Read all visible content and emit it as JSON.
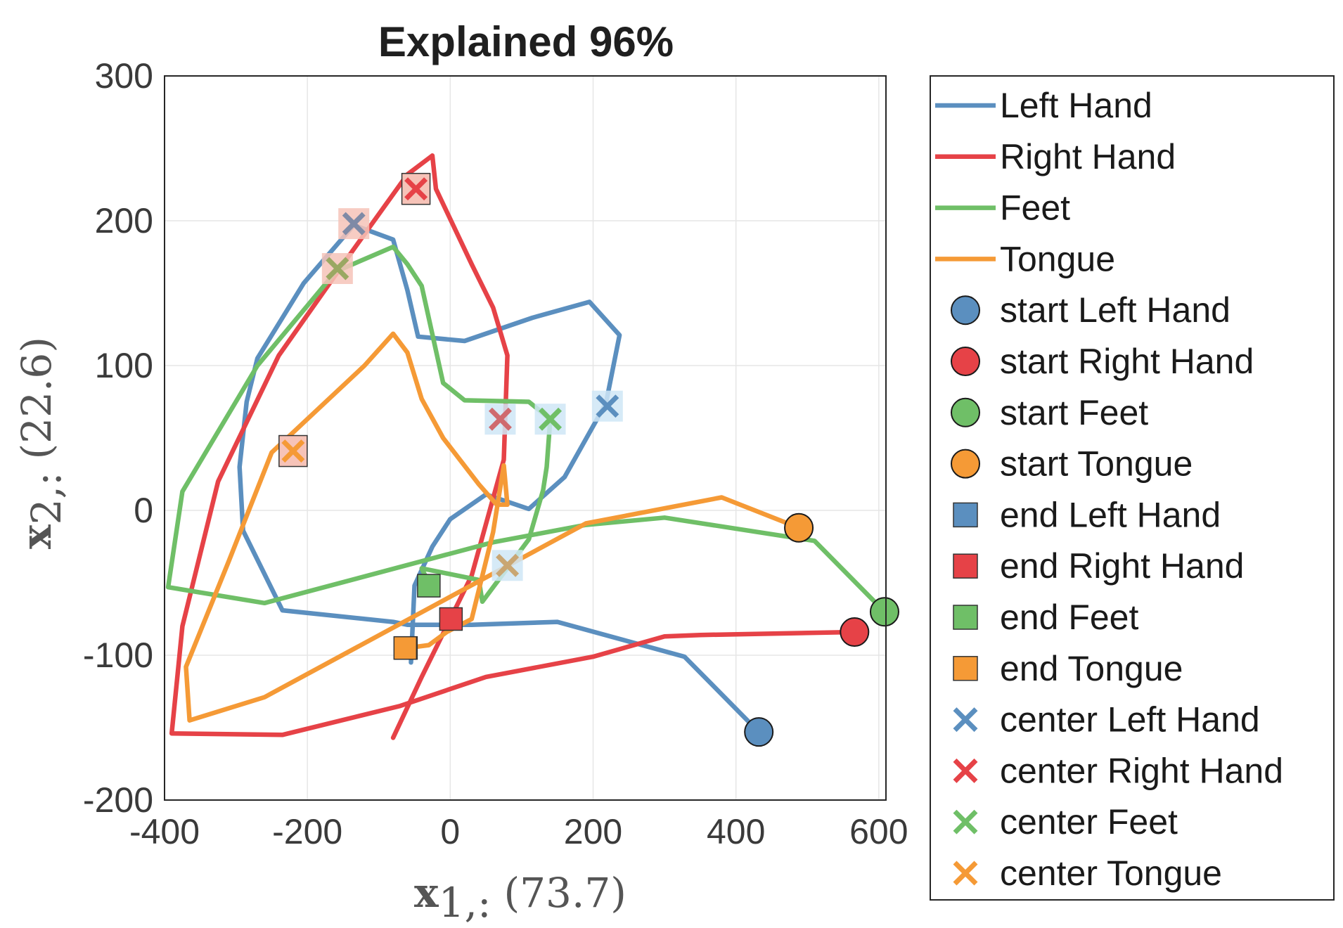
{
  "chart_data": {
    "type": "line",
    "title": "Explained  96%",
    "xlabel": {
      "var": "x",
      "sub": "1,:",
      "pct": "(73.7)"
    },
    "ylabel": {
      "var": "x",
      "sub": "2,:",
      "pct": "(22.6)"
    },
    "xlim": [
      -400,
      610
    ],
    "ylim": [
      -200,
      300
    ],
    "xticks": [
      -400,
      -200,
      0,
      200,
      400,
      600
    ],
    "yticks": [
      -200,
      -100,
      0,
      100,
      200,
      300
    ],
    "xtick_labels": [
      "-400",
      "-200",
      "0",
      "200",
      "400",
      "600"
    ],
    "ytick_labels": [
      "-200",
      "-100",
      "0",
      "100",
      "200",
      "300"
    ],
    "grid": true,
    "legend_position": "outside-right",
    "series": [
      {
        "name": "Left Hand",
        "color": "#5b8fbf",
        "x": [
          432,
          328,
          150,
          30,
          -60,
          -80,
          -235,
          -290,
          -295,
          -285,
          -270,
          -205,
          -135,
          -80,
          -60,
          -45,
          20,
          115,
          195,
          237,
          218,
          160,
          110,
          50,
          0,
          -25,
          -50,
          -55
        ],
        "y": [
          -153,
          -101,
          -77,
          -79,
          -79,
          -77,
          -69,
          -14,
          30,
          75,
          105,
          157,
          197,
          187,
          152,
          120,
          117,
          133,
          144,
          121,
          74,
          23,
          1,
          11,
          -6,
          -25,
          -52,
          -105
        ],
        "start": [
          432,
          -153
        ],
        "end": [
          -62,
          -95
        ],
        "center": [
          220,
          72
        ]
      },
      {
        "name": "Right Hand",
        "color": "#e64247",
        "x": [
          566,
          350,
          300,
          200,
          50,
          -70,
          -235,
          -390,
          -375,
          -325,
          -240,
          -140,
          -60,
          -25,
          -20,
          30,
          60,
          80,
          75,
          30,
          -40,
          -80
        ],
        "y": [
          -84,
          -86,
          -87,
          -101,
          -115,
          -135,
          -155,
          -154,
          -80,
          20,
          107,
          177,
          232,
          245,
          222,
          170,
          140,
          107,
          35,
          -45,
          -115,
          -157
        ],
        "start": [
          566,
          -84
        ],
        "end": [
          1,
          -75
        ],
        "center": [
          -48,
          222
        ]
      },
      {
        "name": "Feet",
        "color": "#6fbf67",
        "x": [
          608,
          510,
          300,
          190,
          60,
          -260,
          -395,
          -375,
          -270,
          -160,
          -80,
          -60,
          -40,
          -10,
          20,
          110,
          140,
          135,
          130,
          110,
          45,
          40,
          -40,
          -30
        ],
        "y": [
          -70,
          -21,
          -5,
          -10,
          -22,
          -64,
          -53,
          13,
          100,
          165,
          182,
          170,
          155,
          88,
          76,
          75,
          63,
          30,
          14,
          -20,
          -63,
          -48,
          -40,
          -50
        ],
        "start": [
          608,
          -70
        ],
        "end": [
          -30,
          -52
        ],
        "center": [
          140,
          63
        ]
      },
      {
        "name": "Tongue",
        "color": "#f59a36",
        "x": [
          488,
          380,
          190,
          -260,
          -365,
          -370,
          -310,
          -250,
          -120,
          -80,
          -60,
          -40,
          -10,
          40,
          65,
          80,
          75,
          60,
          30,
          -5,
          -30,
          -60
        ],
        "y": [
          -12,
          9,
          -9,
          -129,
          -145,
          -108,
          -35,
          40,
          100,
          122,
          109,
          77,
          50,
          18,
          4,
          4,
          31,
          -15,
          -75,
          -84,
          -93,
          -95
        ],
        "start": [
          488,
          -12
        ],
        "end": [
          -63,
          -95
        ],
        "center": [
          -220,
          41
        ]
      }
    ],
    "center_shadows": [
      {
        "x": -135,
        "y": 198,
        "color": "#f6c3b8"
      },
      {
        "x": -158,
        "y": 167,
        "color": "#f6c3b8"
      },
      {
        "x": 70,
        "y": 63,
        "color": "#cfe6f6"
      },
      {
        "x": 80,
        "y": -38,
        "color": "#cfe6f6"
      },
      {
        "x": 220,
        "y": 72,
        "color": "#cfe6f6"
      },
      {
        "x": 140,
        "y": 63,
        "color": "#cfe6f6"
      }
    ],
    "center_boxes": [
      {
        "x": -48,
        "y": 222,
        "color": "#f6c3b8"
      },
      {
        "x": -220,
        "y": 41,
        "color": "#f6c3b8"
      }
    ],
    "extra_centers": [
      {
        "x": -135,
        "y": 198,
        "color": "#7f8aa6"
      },
      {
        "x": -158,
        "y": 167,
        "color": "#9aa862"
      },
      {
        "x": 70,
        "y": 63,
        "color": "#cf6a6e"
      },
      {
        "x": 80,
        "y": -38,
        "color": "#c9a673"
      }
    ]
  },
  "legend": {
    "items": [
      {
        "label": "Left Hand",
        "kind": "line",
        "color": "#5b8fbf"
      },
      {
        "label": "Right Hand",
        "kind": "line",
        "color": "#e64247"
      },
      {
        "label": "Feet",
        "kind": "line",
        "color": "#6fbf67"
      },
      {
        "label": "Tongue",
        "kind": "line",
        "color": "#f59a36"
      },
      {
        "label": "start Left Hand",
        "kind": "circle",
        "color": "#5b8fbf"
      },
      {
        "label": "start Right Hand",
        "kind": "circle",
        "color": "#e64247"
      },
      {
        "label": "start Feet",
        "kind": "circle",
        "color": "#6fbf67"
      },
      {
        "label": "start Tongue",
        "kind": "circle",
        "color": "#f59a36"
      },
      {
        "label": "end Left Hand",
        "kind": "square",
        "color": "#5b8fbf"
      },
      {
        "label": "end Right Hand",
        "kind": "square",
        "color": "#e64247"
      },
      {
        "label": "end Feet",
        "kind": "square",
        "color": "#6fbf67"
      },
      {
        "label": "end Tongue",
        "kind": "square",
        "color": "#f59a36"
      },
      {
        "label": "center Left Hand",
        "kind": "cross",
        "color": "#5b8fbf"
      },
      {
        "label": "center Right Hand",
        "kind": "cross",
        "color": "#e64247"
      },
      {
        "label": "center Feet",
        "kind": "cross",
        "color": "#6fbf67"
      },
      {
        "label": "center Tongue",
        "kind": "cross",
        "color": "#f59a36"
      }
    ]
  }
}
